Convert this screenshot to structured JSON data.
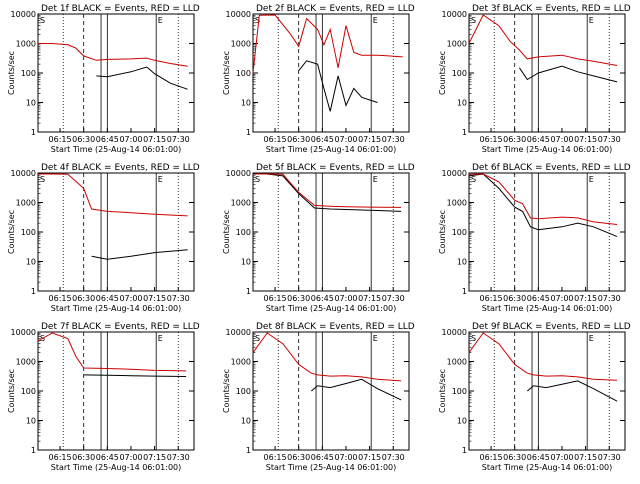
{
  "figure": {
    "ylabel": "Counts/sec",
    "xlabel": "Start Time (25-Aug-14 06:01:00)",
    "yticks": [
      "1",
      "10",
      "100",
      "1000",
      "10000"
    ],
    "xticks": [
      "06:15",
      "06:30",
      "06:45",
      "07:00",
      "07:15",
      "07:30"
    ],
    "flags": [
      "S",
      "E"
    ]
  },
  "colors": {
    "events": "#000000",
    "lld": "#cc0000",
    "background": "#ffffff"
  },
  "chart_data": [
    {
      "type": "line",
      "title": "Det 1f BLACK = Events, RED = LLD",
      "ylim": [
        1,
        10000
      ],
      "yscale": "log",
      "x": [
        "06:01",
        "06:10",
        "06:20",
        "06:25",
        "06:30",
        "06:38",
        "06:45",
        "07:00",
        "07:10",
        "07:15",
        "07:25",
        "07:36"
      ],
      "series": [
        {
          "name": "BLACK = Events",
          "values": [
            null,
            null,
            null,
            null,
            null,
            80,
            75,
            110,
            160,
            95,
            45,
            28
          ]
        },
        {
          "name": "RED = LLD",
          "values": [
            1000,
            1000,
            900,
            700,
            380,
            270,
            290,
            300,
            320,
            270,
            210,
            170
          ]
        }
      ]
    },
    {
      "type": "line",
      "title": "Det 2f BLACK = Events, RED = LLD",
      "ylim": [
        1,
        10000
      ],
      "yscale": "log",
      "x": [
        "06:01",
        "06:05",
        "06:15",
        "06:25",
        "06:30",
        "06:35",
        "06:42",
        "06:46",
        "06:50",
        "06:55",
        "07:00",
        "07:05",
        "07:10",
        "07:20",
        "07:36"
      ],
      "series": [
        {
          "name": "BLACK = Events",
          "values": [
            null,
            null,
            null,
            null,
            120,
            260,
            200,
            30,
            5,
            80,
            8,
            30,
            15,
            10,
            null
          ]
        },
        {
          "name": "RED = LLD",
          "values": [
            100,
            9000,
            10000,
            2000,
            800,
            7000,
            3000,
            900,
            3000,
            150,
            4000,
            500,
            400,
            400,
            350
          ]
        }
      ]
    },
    {
      "type": "line",
      "title": "Det 3f BLACK = Events, RED = LLD",
      "ylim": [
        1,
        10000
      ],
      "yscale": "log",
      "x": [
        "06:01",
        "06:10",
        "06:20",
        "06:27",
        "06:33",
        "06:38",
        "06:45",
        "07:00",
        "07:10",
        "07:20",
        "07:35"
      ],
      "series": [
        {
          "name": "BLACK = Events",
          "values": [
            null,
            null,
            null,
            null,
            150,
            60,
            100,
            170,
            110,
            80,
            50
          ]
        },
        {
          "name": "RED = LLD",
          "values": [
            1000,
            10000,
            4000,
            1200,
            600,
            300,
            350,
            400,
            300,
            250,
            180
          ]
        }
      ]
    },
    {
      "type": "line",
      "title": "Det 4f BLACK = Events, RED = LLD",
      "ylim": [
        1,
        10000
      ],
      "yscale": "log",
      "x": [
        "06:01",
        "06:10",
        "06:20",
        "06:30",
        "06:35",
        "06:45",
        "07:00",
        "07:15",
        "07:36"
      ],
      "series": [
        {
          "name": "BLACK = Events",
          "values": [
            null,
            null,
            null,
            null,
            15,
            12,
            15,
            20,
            25
          ]
        },
        {
          "name": "RED = LLD",
          "values": [
            10000,
            10000,
            9000,
            3000,
            600,
            500,
            450,
            400,
            350
          ]
        }
      ]
    },
    {
      "type": "line",
      "title": "Det 5f BLACK = Events, RED = LLD",
      "ylim": [
        1,
        10000
      ],
      "yscale": "log",
      "x": [
        "06:01",
        "06:10",
        "06:20",
        "06:30",
        "06:40",
        "06:50",
        "07:00",
        "07:15",
        "07:35"
      ],
      "series": [
        {
          "name": "BLACK = Events",
          "values": [
            10000,
            10000,
            8000,
            2000,
            650,
            600,
            580,
            550,
            500
          ]
        },
        {
          "name": "RED = LLD",
          "values": [
            10000,
            10000,
            9000,
            2200,
            800,
            750,
            720,
            700,
            680
          ]
        }
      ]
    },
    {
      "type": "line",
      "title": "Det 6f BLACK = Events, RED = LLD",
      "ylim": [
        1,
        10000
      ],
      "yscale": "log",
      "x": [
        "06:01",
        "06:10",
        "06:20",
        "06:30",
        "06:35",
        "06:40",
        "06:45",
        "07:00",
        "07:10",
        "07:20",
        "07:35"
      ],
      "series": [
        {
          "name": "BLACK = Events",
          "values": [
            8000,
            10000,
            3000,
            700,
            500,
            150,
            120,
            150,
            200,
            150,
            70
          ]
        },
        {
          "name": "RED = LLD",
          "values": [
            9000,
            10000,
            5000,
            1200,
            900,
            300,
            280,
            320,
            300,
            220,
            180
          ]
        }
      ]
    },
    {
      "type": "line",
      "title": "Det 7f BLACK = Events, RED = LLD",
      "ylim": [
        1,
        10000
      ],
      "yscale": "log",
      "x": [
        "06:01",
        "06:10",
        "06:20",
        "06:25",
        "06:30",
        "06:45",
        "07:00",
        "07:15",
        "07:35"
      ],
      "series": [
        {
          "name": "BLACK = Events",
          "values": [
            null,
            null,
            null,
            null,
            350,
            340,
            330,
            320,
            310
          ]
        },
        {
          "name": "RED = LLD",
          "values": [
            5000,
            10000,
            6000,
            1500,
            600,
            580,
            550,
            500,
            480
          ]
        }
      ]
    },
    {
      "type": "line",
      "title": "Det 8f BLACK = Events, RED = LLD",
      "ylim": [
        1,
        10000
      ],
      "yscale": "log",
      "x": [
        "06:01",
        "06:10",
        "06:20",
        "06:30",
        "06:38",
        "06:42",
        "06:50",
        "07:00",
        "07:10",
        "07:20",
        "07:35"
      ],
      "series": [
        {
          "name": "BLACK = Events",
          "values": [
            null,
            null,
            null,
            null,
            100,
            150,
            130,
            180,
            250,
            120,
            50
          ]
        },
        {
          "name": "RED = LLD",
          "values": [
            2000,
            10000,
            4000,
            800,
            400,
            350,
            320,
            330,
            300,
            250,
            220
          ]
        }
      ]
    },
    {
      "type": "line",
      "title": "Det 9f BLACK = Events, RED = LLD",
      "ylim": [
        1,
        10000
      ],
      "yscale": "log",
      "x": [
        "06:01",
        "06:10",
        "06:20",
        "06:30",
        "06:38",
        "06:42",
        "06:50",
        "07:00",
        "07:10",
        "07:20",
        "07:35"
      ],
      "series": [
        {
          "name": "BLACK = Events",
          "values": [
            null,
            null,
            null,
            null,
            100,
            150,
            130,
            170,
            220,
            120,
            45
          ]
        },
        {
          "name": "RED = LLD",
          "values": [
            2000,
            10000,
            4000,
            800,
            400,
            350,
            320,
            330,
            300,
            250,
            230
          ]
        }
      ]
    }
  ]
}
